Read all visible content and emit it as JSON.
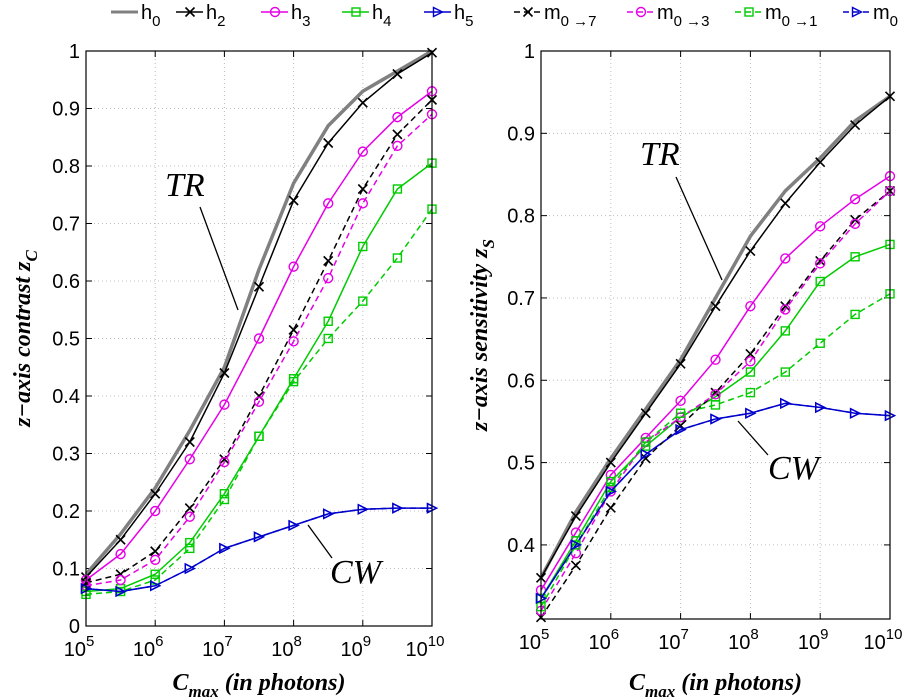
{
  "legend": [
    {
      "id": "h0",
      "base": "h",
      "sub": "0"
    },
    {
      "id": "h2",
      "base": "h",
      "sub": "2"
    },
    {
      "id": "h3",
      "base": "h",
      "sub": "3"
    },
    {
      "id": "h4",
      "base": "h",
      "sub": "4"
    },
    {
      "id": "h5",
      "base": "h",
      "sub": "5"
    },
    {
      "id": "m07",
      "base": "m",
      "sub": "0 →7"
    },
    {
      "id": "m03",
      "base": "m",
      "sub": "0 →3"
    },
    {
      "id": "m01",
      "base": "m",
      "sub": "0 →1"
    },
    {
      "id": "m0",
      "base": "m",
      "sub": "0"
    }
  ],
  "styles": {
    "h0": {
      "color": "#808080",
      "dash": "solid",
      "marker": "none",
      "width": 3.5
    },
    "h2": {
      "color": "#000000",
      "dash": "solid",
      "marker": "x",
      "width": 1.5
    },
    "h3": {
      "color": "#e600e6",
      "dash": "solid",
      "marker": "o",
      "width": 1.5
    },
    "h4": {
      "color": "#00cc00",
      "dash": "solid",
      "marker": "s",
      "width": 1.5
    },
    "h5": {
      "color": "#0000cc",
      "dash": "solid",
      "marker": ">",
      "width": 1.5
    },
    "m07": {
      "color": "#000000",
      "dash": "dashed",
      "marker": "x",
      "width": 1.5
    },
    "m03": {
      "color": "#e600e6",
      "dash": "dashed",
      "marker": "o",
      "width": 1.5
    },
    "m01": {
      "color": "#00cc00",
      "dash": "dashed",
      "marker": "s",
      "width": 1.5
    },
    "m0": {
      "color": "#0000cc",
      "dash": "dashed",
      "marker": ">",
      "width": 1.5
    }
  },
  "chart_data": [
    {
      "type": "line",
      "xscale": "log",
      "xlabel": {
        "base": "C",
        "sub": "max",
        "rest": " (in photons)"
      },
      "ylabel": {
        "base": "z−axis contrast z",
        "sub": "C"
      },
      "xlim": [
        100000,
        10000000000
      ],
      "ylim": [
        0,
        1
      ],
      "xtick_exponents": [
        "5",
        "6",
        "7",
        "8",
        "9",
        "10"
      ],
      "yticks": [
        "0",
        "0.1",
        "0.2",
        "0.3",
        "0.4",
        "0.5",
        "0.6",
        "0.7",
        "0.8",
        "0.9",
        "1"
      ],
      "grid": true,
      "annotations": [
        {
          "text": "TR",
          "x": 10000000,
          "y": 0.48
        },
        {
          "text": "CW",
          "x": 50000000,
          "y": 0.18
        }
      ],
      "x": [
        100000,
        316228,
        1000000,
        3162278,
        10000000,
        31622777,
        100000000,
        316227766,
        1000000000,
        3162277660,
        10000000000
      ],
      "series": [
        {
          "id": "h0",
          "values": [
            0.09,
            0.16,
            0.24,
            0.34,
            0.45,
            0.62,
            0.77,
            0.87,
            0.93,
            0.965,
            1.0
          ]
        },
        {
          "id": "h2",
          "values": [
            0.085,
            0.15,
            0.23,
            0.32,
            0.44,
            0.59,
            0.74,
            0.84,
            0.91,
            0.96,
            0.997
          ]
        },
        {
          "id": "h3",
          "values": [
            0.08,
            0.125,
            0.2,
            0.29,
            0.385,
            0.5,
            0.625,
            0.735,
            0.825,
            0.885,
            0.93
          ]
        },
        {
          "id": "h4",
          "values": [
            0.06,
            0.065,
            0.09,
            0.145,
            0.23,
            0.33,
            0.43,
            0.53,
            0.66,
            0.76,
            0.805
          ]
        },
        {
          "id": "h5",
          "values": [
            0.065,
            0.06,
            0.07,
            0.1,
            0.135,
            0.155,
            0.175,
            0.195,
            0.203,
            0.205,
            0.205
          ]
        },
        {
          "id": "m07",
          "values": [
            0.075,
            0.09,
            0.13,
            0.205,
            0.29,
            0.4,
            0.515,
            0.635,
            0.76,
            0.855,
            0.915
          ]
        },
        {
          "id": "m03",
          "values": [
            0.07,
            0.08,
            0.115,
            0.19,
            0.285,
            0.39,
            0.495,
            0.605,
            0.735,
            0.835,
            0.89
          ]
        },
        {
          "id": "m01",
          "values": [
            0.055,
            0.06,
            0.08,
            0.135,
            0.22,
            0.33,
            0.425,
            0.5,
            0.565,
            0.64,
            0.725
          ]
        },
        {
          "id": "m0",
          "values": [
            0.065,
            0.06,
            0.07,
            0.1,
            0.135,
            0.155,
            0.175,
            0.195,
            0.203,
            0.205,
            0.205
          ]
        }
      ]
    },
    {
      "type": "line",
      "xscale": "log",
      "xlabel": {
        "base": "C",
        "sub": "max",
        "rest": " (in photons)"
      },
      "ylabel": {
        "base": "z−axis sensitivity z",
        "sub": "S"
      },
      "xlim": [
        100000,
        10000000000
      ],
      "ylim": [
        0.31,
        1
      ],
      "xtick_exponents": [
        "5",
        "6",
        "7",
        "8",
        "9",
        "10"
      ],
      "yticks": [
        "0.4",
        "0.5",
        "0.6",
        "0.7",
        "0.8",
        "0.9",
        "1"
      ],
      "grid": true,
      "annotations": [
        {
          "text": "TR",
          "x": 3000000,
          "y": 0.9
        },
        {
          "text": "CW",
          "x": 100000000,
          "y": 0.48
        }
      ],
      "x": [
        100000,
        316228,
        1000000,
        3162278,
        10000000,
        31622777,
        100000000,
        316227766,
        1000000000,
        3162277660,
        10000000000
      ],
      "series": [
        {
          "id": "h0",
          "values": [
            0.36,
            0.44,
            0.505,
            0.565,
            0.625,
            0.7,
            0.775,
            0.83,
            0.87,
            0.915,
            0.945
          ]
        },
        {
          "id": "h2",
          "values": [
            0.36,
            0.435,
            0.5,
            0.56,
            0.62,
            0.69,
            0.757,
            0.815,
            0.865,
            0.91,
            0.945
          ]
        },
        {
          "id": "h3",
          "values": [
            0.345,
            0.415,
            0.485,
            0.53,
            0.575,
            0.625,
            0.69,
            0.748,
            0.787,
            0.82,
            0.848
          ]
        },
        {
          "id": "h4",
          "values": [
            0.335,
            0.405,
            0.477,
            0.52,
            0.555,
            0.58,
            0.61,
            0.66,
            0.72,
            0.75,
            0.765
          ]
        },
        {
          "id": "h5",
          "values": [
            0.335,
            0.4,
            0.465,
            0.51,
            0.54,
            0.553,
            0.56,
            0.572,
            0.567,
            0.56,
            0.557
          ]
        },
        {
          "id": "m07",
          "values": [
            0.312,
            0.375,
            0.445,
            0.505,
            0.545,
            0.585,
            0.632,
            0.69,
            0.745,
            0.795,
            0.83
          ]
        },
        {
          "id": "m03",
          "values": [
            0.32,
            0.39,
            0.465,
            0.525,
            0.555,
            0.583,
            0.623,
            0.686,
            0.742,
            0.79,
            0.83
          ]
        },
        {
          "id": "m01",
          "values": [
            0.325,
            0.4,
            0.47,
            0.525,
            0.56,
            0.57,
            0.585,
            0.61,
            0.645,
            0.68,
            0.705
          ]
        },
        {
          "id": "m0",
          "values": [
            0.335,
            0.4,
            0.465,
            0.51,
            0.54,
            0.553,
            0.56,
            0.572,
            0.567,
            0.56,
            0.557
          ]
        }
      ]
    }
  ]
}
